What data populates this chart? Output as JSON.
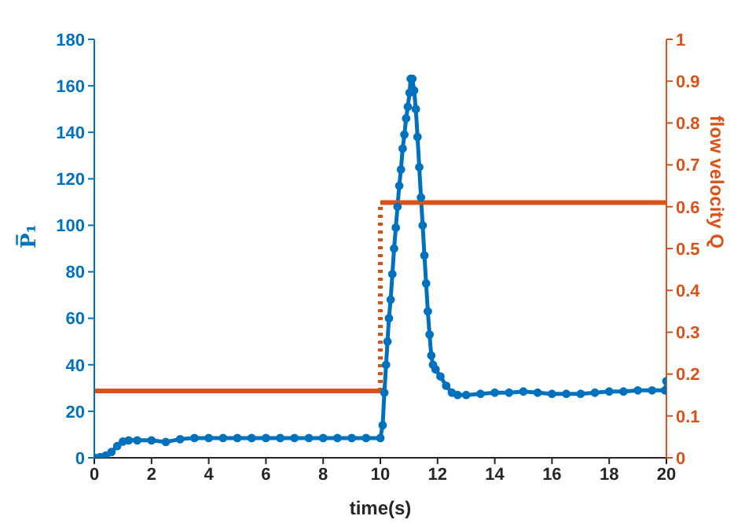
{
  "chart_data": {
    "type": "line",
    "xlabel": "time(s)",
    "ylabel": "P̅₁",
    "y2label": "flow velocity Q",
    "xlim": [
      0,
      20
    ],
    "xticks": [
      0,
      2,
      4,
      6,
      8,
      10,
      12,
      14,
      16,
      18,
      20
    ],
    "ylim": [
      0,
      180
    ],
    "yticks": [
      0,
      20,
      40,
      60,
      80,
      100,
      120,
      140,
      160,
      180
    ],
    "y2lim": [
      0,
      1
    ],
    "y2ticks": [
      0,
      0.1,
      0.2,
      0.3,
      0.4,
      0.5,
      0.6,
      0.7,
      0.8,
      0.9,
      1
    ],
    "series": [
      {
        "color": "#0072bd",
        "marker": "circle",
        "line_style": "solid",
        "x": [
          0,
          0.2,
          0.4,
          0.6,
          0.8,
          1.0,
          1.2,
          1.5,
          2.0,
          2.5,
          3.0,
          3.5,
          4,
          4.5,
          5,
          5.5,
          6,
          6.5,
          7,
          7.5,
          8,
          8.5,
          9,
          9.5,
          10.0,
          10.08,
          10.14,
          10.2,
          10.25,
          10.3,
          10.36,
          10.42,
          10.48,
          10.54,
          10.6,
          10.66,
          10.72,
          10.78,
          10.84,
          10.9,
          10.96,
          11.02,
          11.06,
          11.12,
          11.18,
          11.24,
          11.3,
          11.36,
          11.42,
          11.48,
          11.54,
          11.6,
          11.66,
          11.72,
          11.78,
          11.84,
          11.93,
          12.1,
          12.3,
          12.5,
          12.7,
          13,
          13.5,
          14,
          14.5,
          15,
          15.5,
          16,
          16.5,
          17,
          17.5,
          18,
          18.5,
          19,
          19.5,
          19.95,
          20
        ],
        "values": [
          0,
          0.3,
          1,
          2.5,
          5,
          7,
          7.5,
          7.5,
          7.5,
          6.8,
          8,
          8.5,
          8.5,
          8.5,
          8.5,
          8.5,
          8.5,
          8.5,
          8.5,
          8.5,
          8.5,
          8.5,
          8.5,
          8.5,
          8.5,
          14,
          28,
          40,
          50,
          60,
          68,
          79,
          90,
          99,
          108,
          117,
          124,
          133,
          139,
          146,
          151,
          157,
          163,
          163,
          158,
          150,
          138,
          125,
          112,
          100,
          87,
          75,
          63,
          53,
          44,
          40,
          38,
          35,
          31,
          28,
          27,
          27,
          27.5,
          28,
          28,
          28.5,
          28,
          27.5,
          27.5,
          27.5,
          28,
          28.5,
          28.5,
          29,
          29,
          29,
          33
        ]
      },
      {
        "axis": "y2",
        "color": "#d95319",
        "marker": "none",
        "line_style": "solid",
        "x": [
          0,
          10
        ],
        "values": [
          0.16,
          0.16
        ]
      },
      {
        "axis": "y2",
        "color": "#d95319",
        "marker": "none",
        "line_style": "dotted",
        "x": [
          10,
          10
        ],
        "values": [
          0.16,
          0.61
        ]
      },
      {
        "axis": "y2",
        "color": "#d95319",
        "marker": "none",
        "line_style": "solid",
        "x": [
          10,
          20
        ],
        "values": [
          0.61,
          0.61
        ]
      }
    ]
  }
}
